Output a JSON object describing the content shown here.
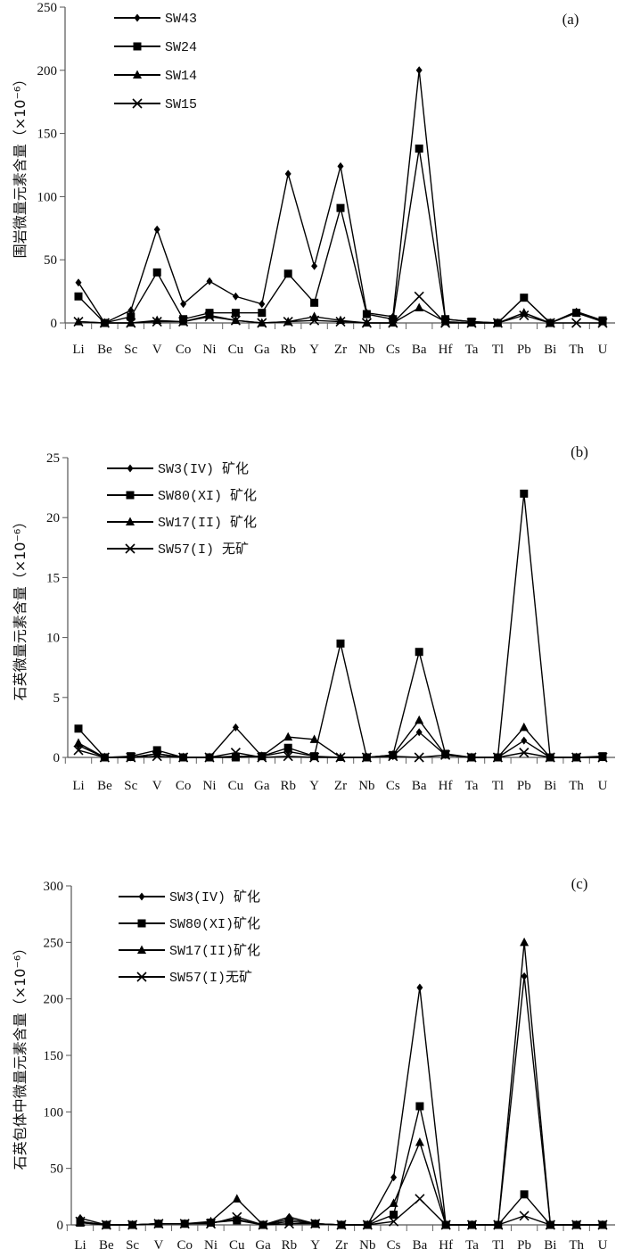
{
  "chart_data": [
    {
      "type": "line",
      "panel_label": "(a)",
      "ylabel": "围岩微量元素含量（×10⁻⁶）",
      "ylim": [
        0,
        250
      ],
      "yticks": [
        "0",
        "50",
        "100",
        "150",
        "200",
        "250"
      ],
      "legend_placement": "top-left",
      "categories": [
        "Li",
        "Be",
        "Sc",
        "V",
        "Co",
        "Ni",
        "Cu",
        "Ga",
        "Rb",
        "Y",
        "Zr",
        "Nb",
        "Cs",
        "Ba",
        "Hf",
        "Ta",
        "Tl",
        "Pb",
        "Bi",
        "Th",
        "U"
      ],
      "series": [
        {
          "name": "SW43",
          "marker": "diamond",
          "values": [
            32,
            0,
            10,
            74,
            15,
            33,
            21,
            15,
            118,
            45,
            124,
            8,
            5,
            200,
            3,
            1,
            0,
            20,
            0,
            9,
            2
          ]
        },
        {
          "name": "SW24",
          "marker": "square",
          "values": [
            21,
            0,
            5,
            40,
            3,
            8,
            8,
            8,
            39,
            16,
            91,
            7,
            3,
            138,
            3,
            1,
            0,
            20,
            0,
            8,
            2
          ]
        },
        {
          "name": "SW14",
          "marker": "triangle",
          "values": [
            1,
            0,
            0,
            2,
            1,
            6,
            2,
            0,
            1,
            5,
            2,
            0,
            0,
            12,
            1,
            0,
            0,
            8,
            0,
            8,
            1
          ]
        },
        {
          "name": "SW15",
          "marker": "x",
          "values": [
            1,
            0,
            0,
            1,
            1,
            5,
            2,
            0,
            1,
            2,
            1,
            0,
            0,
            21,
            0,
            0,
            0,
            6,
            0,
            0,
            0
          ]
        }
      ]
    },
    {
      "type": "line",
      "panel_label": "(b)",
      "ylabel": "石英微量元素含量（×10⁻⁶）",
      "ylim": [
        0,
        25
      ],
      "yticks": [
        "0",
        "5",
        "10",
        "15",
        "20",
        "25"
      ],
      "legend_placement": "top-left",
      "categories": [
        "Li",
        "Be",
        "Sc",
        "V",
        "Co",
        "Ni",
        "Cu",
        "Ga",
        "Rb",
        "Y",
        "Zr",
        "Nb",
        "Cs",
        "Ba",
        "Hf",
        "Ta",
        "Tl",
        "Pb",
        "Bi",
        "Th",
        "U"
      ],
      "series": [
        {
          "name": "SW3(IV) 矿化",
          "marker": "diamond",
          "values": [
            1.0,
            0,
            0,
            0.3,
            0,
            0,
            2.5,
            0.1,
            0.5,
            0.1,
            0,
            0,
            0.1,
            2.1,
            0.2,
            0,
            0,
            1.4,
            0,
            0,
            0
          ]
        },
        {
          "name": "SW80(XI) 矿化",
          "marker": "square",
          "values": [
            2.4,
            0,
            0.1,
            0.6,
            0,
            0,
            0,
            0.1,
            0.8,
            0.1,
            9.5,
            0,
            0.2,
            8.8,
            0.3,
            0,
            0,
            22,
            0,
            0,
            0.1
          ]
        },
        {
          "name": "SW17(II) 矿化",
          "marker": "triangle",
          "values": [
            1.2,
            0,
            0,
            0.3,
            0,
            0,
            0.1,
            0.1,
            1.7,
            1.5,
            0,
            0,
            0.2,
            3.1,
            0.2,
            0,
            0,
            2.5,
            0,
            0,
            0
          ]
        },
        {
          "name": "SW57(I) 无矿",
          "marker": "x",
          "values": [
            0.6,
            0,
            0,
            0.1,
            0,
            0,
            0.4,
            0,
            0.1,
            0,
            0,
            0,
            0.1,
            0,
            0.2,
            0,
            0,
            0.4,
            0,
            0,
            0
          ]
        }
      ]
    },
    {
      "type": "line",
      "panel_label": "(c)",
      "ylabel": "石英包体中微量元素含量（×10⁻⁶）",
      "ylim": [
        0,
        300
      ],
      "yticks": [
        "0",
        "50",
        "100",
        "150",
        "200",
        "250",
        "300"
      ],
      "legend_placement": "top-left",
      "categories": [
        "Li",
        "Be",
        "Sc",
        "V",
        "Co",
        "Ni",
        "Cu",
        "Ga",
        "Rb",
        "Y",
        "Zr",
        "Nb",
        "Cs",
        "Ba",
        "Hf",
        "Ta",
        "Tl",
        "Pb",
        "Bi",
        "Th",
        "U"
      ],
      "series": [
        {
          "name": "SW3(IV) 矿化",
          "marker": "diamond",
          "values": [
            6,
            0,
            0,
            1,
            1,
            2,
            5,
            0,
            7,
            1,
            0,
            0,
            42,
            210,
            0,
            0,
            0,
            220,
            0,
            0,
            0
          ]
        },
        {
          "name": "SW80(XI)矿化",
          "marker": "square",
          "values": [
            2,
            0,
            0,
            1,
            1,
            2,
            4,
            0,
            3,
            1,
            0,
            0,
            9,
            105,
            0,
            0,
            0,
            27,
            0,
            0,
            0
          ]
        },
        {
          "name": "SW17(II)矿化",
          "marker": "triangle",
          "values": [
            2,
            0,
            0,
            1,
            1,
            3,
            23,
            0,
            5,
            1,
            0,
            0,
            19,
            73,
            0,
            0,
            0,
            250,
            0,
            0,
            0
          ]
        },
        {
          "name": "SW57(I)无矿",
          "marker": "x",
          "values": [
            3,
            0,
            0,
            1,
            1,
            1,
            7,
            0,
            1,
            1,
            0,
            0,
            3,
            23,
            0,
            0,
            0,
            8,
            0,
            0,
            0
          ]
        }
      ]
    }
  ]
}
